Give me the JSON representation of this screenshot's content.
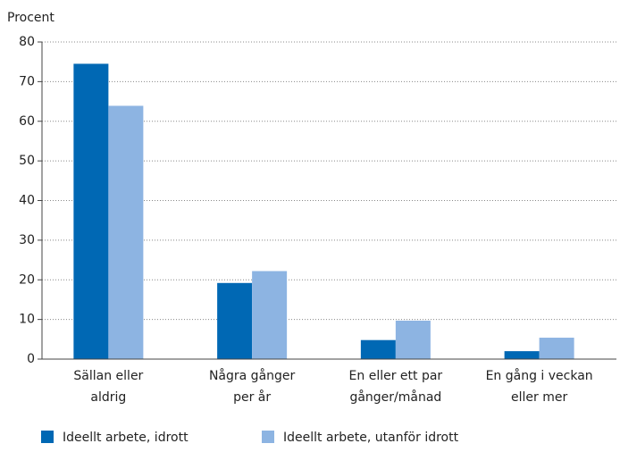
{
  "chart_data": {
    "type": "bar",
    "ylabel": "Procent",
    "categories": [
      [
        "Sällan eller",
        "aldrig"
      ],
      [
        "Några gånger",
        "per år"
      ],
      [
        "En eller ett par",
        "gånger/månad"
      ],
      [
        "En gång i veckan",
        "eller mer"
      ]
    ],
    "series": [
      {
        "name": "Ideellt arbete, idrott",
        "color": "#0068b4",
        "values": [
          74.5,
          19.2,
          4.8,
          2.0
        ]
      },
      {
        "name": "Ideellt arbete, utanför idrott",
        "color": "#8db4e2",
        "values": [
          63.9,
          22.2,
          9.7,
          5.4
        ]
      }
    ],
    "ylim": [
      0,
      80
    ],
    "yticks": [
      0,
      10,
      20,
      30,
      40,
      50,
      60,
      70,
      80
    ],
    "grid": true
  }
}
